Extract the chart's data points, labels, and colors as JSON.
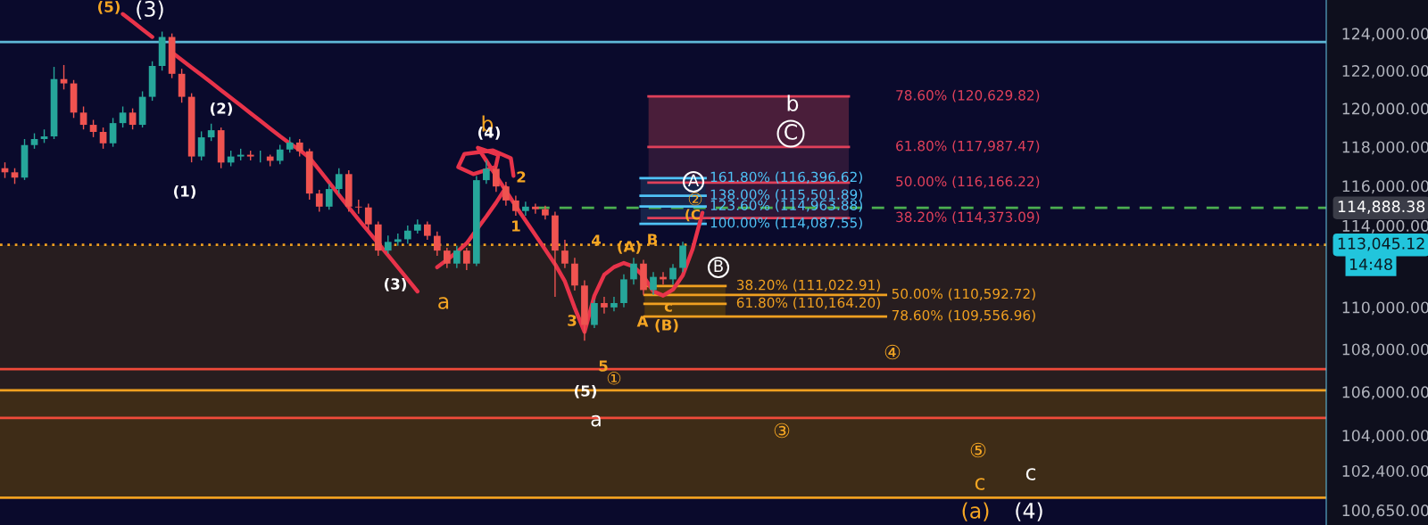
{
  "chart_data": {
    "type": "candlestick",
    "log": true,
    "tick_labels": "y",
    "categories": [
      null,
      null,
      null,
      null,
      null,
      null,
      null,
      null,
      null,
      null,
      null,
      null,
      null,
      null,
      null,
      null,
      null,
      null,
      null,
      null,
      null,
      null,
      null,
      null,
      null,
      null,
      null,
      null,
      null,
      null,
      null,
      null,
      null,
      null,
      null,
      null,
      null,
      null,
      null,
      null,
      null,
      null,
      null,
      null,
      null,
      null,
      null,
      null,
      null,
      null,
      null,
      null,
      null,
      null,
      null,
      null,
      null,
      null,
      null,
      null,
      null,
      null,
      null,
      null,
      null,
      null,
      null,
      null,
      null,
      null,
      null,
      null,
      null,
      null,
      null,
      null,
      null,
      null,
      null,
      null,
      null,
      null,
      null,
      null,
      null,
      null,
      null,
      null,
      null,
      null,
      null,
      null,
      null,
      null,
      null,
      null,
      null,
      null,
      null,
      null,
      null,
      null,
      null,
      null,
      null,
      null,
      null,
      null,
      null,
      null,
      null,
      null,
      null,
      null,
      null,
      null,
      null,
      null,
      null,
      null,
      null,
      null,
      null,
      null,
      null,
      null,
      null,
      null,
      null,
      null,
      null,
      null,
      null,
      null,
      null
    ],
    "ohlc": [
      [
        116900,
        117200,
        116400,
        116690
      ],
      [
        116690,
        116900,
        116100,
        116420
      ],
      [
        116420,
        118400,
        116300,
        118090
      ],
      [
        118090,
        118700,
        117900,
        118400
      ],
      [
        118400,
        118900,
        118200,
        118540
      ],
      [
        118540,
        122200,
        118400,
        121550
      ],
      [
        121550,
        122300,
        121000,
        121320
      ],
      [
        121320,
        121500,
        119500,
        119780
      ],
      [
        119780,
        120100,
        118900,
        119140
      ],
      [
        119140,
        119400,
        118500,
        118770
      ],
      [
        118770,
        119000,
        117900,
        118180
      ],
      [
        118180,
        119500,
        118000,
        119230
      ],
      [
        119230,
        120100,
        119000,
        119780
      ],
      [
        119780,
        120000,
        118900,
        119140
      ],
      [
        119140,
        120900,
        119000,
        120610
      ],
      [
        120610,
        122500,
        120400,
        122250
      ],
      [
        122250,
        124100,
        122000,
        123810
      ],
      [
        123810,
        124000,
        121600,
        121830
      ],
      [
        121830,
        122100,
        120300,
        120610
      ],
      [
        120610,
        120800,
        117200,
        117500
      ],
      [
        117500,
        118800,
        117300,
        118490
      ],
      [
        118490,
        119200,
        118300,
        118860
      ],
      [
        118860,
        119000,
        116900,
        117190
      ],
      [
        117190,
        117800,
        117000,
        117500
      ],
      [
        117500,
        117900,
        117300,
        117590
      ],
      [
        117590,
        117800,
        117300,
        117500
      ],
      [
        117500,
        117800,
        117200,
        117500
      ],
      [
        117500,
        117600,
        117000,
        117280
      ],
      [
        117280,
        118100,
        117100,
        117860
      ],
      [
        117860,
        118500,
        117700,
        118220
      ],
      [
        118220,
        118400,
        117500,
        117770
      ],
      [
        117770,
        117900,
        115300,
        115610
      ],
      [
        115610,
        115800,
        114700,
        114950
      ],
      [
        114950,
        116100,
        114800,
        115840
      ],
      [
        115840,
        116900,
        115600,
        116600
      ],
      [
        116600,
        116800,
        114700,
        114950
      ],
      [
        114950,
        115300,
        114600,
        114910
      ],
      [
        114910,
        115100,
        113800,
        114060
      ],
      [
        114060,
        114200,
        112500,
        112760
      ],
      [
        112760,
        113500,
        112600,
        113190
      ],
      [
        113190,
        113600,
        113000,
        113320
      ],
      [
        113320,
        114000,
        113100,
        113750
      ],
      [
        113750,
        114300,
        113600,
        114060
      ],
      [
        114060,
        114200,
        113300,
        113490
      ],
      [
        113490,
        113700,
        112500,
        112760
      ],
      [
        112760,
        112900,
        111900,
        112120
      ],
      [
        112120,
        113000,
        111900,
        112760
      ],
      [
        112760,
        112900,
        111800,
        112120
      ],
      [
        112120,
        116500,
        112000,
        116290
      ],
      [
        116290,
        117300,
        116100,
        116870
      ],
      [
        116870,
        117000,
        115700,
        115970
      ],
      [
        115970,
        116200,
        115000,
        115260
      ],
      [
        115260,
        115500,
        114500,
        114730
      ],
      [
        114730,
        115200,
        114500,
        114950
      ],
      [
        114950,
        115100,
        114600,
        114820
      ],
      [
        114820,
        115000,
        114300,
        114510
      ],
      [
        114510,
        114700,
        110500,
        112760
      ],
      [
        112760,
        113300,
        111900,
        112120
      ],
      [
        112120,
        112400,
        110800,
        111050
      ],
      [
        111050,
        111300,
        108400,
        109150
      ],
      [
        109150,
        110350,
        109000,
        110200
      ],
      [
        110200,
        110500,
        109700,
        109990
      ],
      [
        109990,
        110500,
        109800,
        110200
      ],
      [
        110200,
        111600,
        110000,
        111350
      ],
      [
        111350,
        112400,
        111100,
        112120
      ],
      [
        112120,
        112300,
        110600,
        110830
      ],
      [
        110830,
        111700,
        110600,
        111470
      ],
      [
        111470,
        111700,
        111100,
        111350
      ],
      [
        111350,
        112100,
        111100,
        111910
      ],
      [
        111910,
        113200,
        111700,
        113010
      ],
      null,
      null,
      null,
      null,
      null,
      null,
      null,
      null,
      null,
      null,
      null,
      null,
      null,
      null,
      null,
      null,
      null,
      null,
      null,
      null,
      null,
      null,
      null,
      null,
      null,
      null,
      null,
      null,
      null,
      null,
      null,
      null,
      null,
      null,
      null,
      null,
      null,
      null,
      null,
      null,
      null,
      null,
      null,
      null,
      null,
      null,
      null,
      null,
      null,
      null,
      null,
      null,
      null,
      null,
      null,
      null,
      null,
      null,
      null,
      null,
      null,
      null,
      null,
      null,
      null
    ],
    "series": [
      {
        "type": "line",
        "color": "#e8334a",
        "values": [
          null,
          null,
          null,
          null,
          null,
          null,
          null,
          null,
          null,
          null,
          null,
          null,
          125060,
          124640,
          124220,
          123810,
          null,
          122980,
          122570,
          122170,
          121770,
          121370,
          120960,
          120560,
          120160,
          119750,
          119350,
          118950,
          118550,
          118170,
          117840,
          117440,
          116810,
          116180,
          115540,
          114910,
          114300,
          113710,
          113120,
          112530,
          111940,
          111350,
          110760,
          null,
          null,
          null,
          null,
          null,
          null,
          null,
          null,
          null,
          null,
          null,
          null,
          null,
          null,
          null,
          null,
          null,
          null,
          null,
          null,
          null,
          null,
          null,
          null,
          null,
          null,
          null,
          null,
          null,
          null,
          null,
          null,
          null,
          null,
          null,
          null,
          null,
          null,
          null,
          null,
          null,
          null,
          null,
          null,
          null,
          null,
          null,
          null,
          null,
          null,
          null,
          null,
          null,
          null,
          null,
          null,
          null,
          null,
          null,
          null,
          null,
          null,
          null,
          null,
          null,
          null,
          null,
          null,
          null,
          null,
          null,
          null,
          null,
          null,
          null,
          null,
          null,
          null,
          null,
          null,
          null,
          null,
          null,
          null,
          null,
          null,
          null,
          null,
          null,
          null,
          null,
          null
        ]
      },
      {
        "type": "line",
        "color": "#e8334a",
        "values": [
          null,
          null,
          null,
          null,
          null,
          null,
          null,
          null,
          null,
          null,
          null,
          null,
          null,
          null,
          null,
          null,
          null,
          null,
          null,
          null,
          null,
          null,
          null,
          null,
          null,
          null,
          null,
          null,
          null,
          null,
          null,
          null,
          null,
          null,
          null,
          null,
          null,
          null,
          null,
          null,
          null,
          null,
          null,
          null,
          111940,
          112310,
          112680,
          113120,
          113790,
          114450,
          115150,
          115920,
          null,
          null,
          null,
          null,
          null,
          null,
          null,
          null,
          null,
          null,
          null,
          null,
          null,
          null,
          null,
          null,
          null,
          null,
          null,
          null,
          null,
          null,
          null,
          null,
          null,
          null,
          null,
          null,
          null,
          null,
          null,
          null,
          null,
          null,
          null,
          null,
          null,
          null,
          null,
          null,
          null,
          null,
          null,
          null,
          null,
          null,
          null,
          null,
          null,
          null,
          null,
          null,
          null,
          null,
          null,
          null,
          null,
          null,
          null,
          null,
          null,
          null,
          null,
          null,
          null,
          null,
          null,
          null,
          null,
          null,
          null,
          null,
          null,
          null,
          null,
          null,
          null,
          null,
          null,
          null,
          null,
          null,
          null
        ]
      },
      {
        "type": "line",
        "color": "#e8334a",
        "values": [
          null,
          null,
          null,
          null,
          null,
          null,
          null,
          null,
          null,
          null,
          null,
          null,
          null,
          null,
          null,
          null,
          null,
          null,
          null,
          null,
          null,
          null,
          null,
          null,
          null,
          null,
          null,
          null,
          null,
          null,
          null,
          null,
          null,
          null,
          null,
          null,
          null,
          null,
          null,
          null,
          null,
          null,
          null,
          null,
          null,
          null,
          null,
          null,
          null,
          117290,
          116510,
          115740,
          114980,
          114250,
          113530,
          112810,
          112090,
          111250,
          109970,
          108820,
          110550,
          111570,
          111950,
          112150,
          111970,
          111500,
          110770,
          110560,
          110850,
          111540,
          112830,
          114640,
          null,
          null,
          null,
          null,
          null,
          null,
          null,
          null,
          null,
          null,
          null,
          null,
          null,
          null,
          null,
          null,
          null,
          null,
          null,
          null,
          null,
          null,
          null,
          null,
          null,
          null,
          null,
          null,
          null,
          null,
          null,
          null,
          null,
          null,
          null,
          null,
          null,
          null,
          null,
          null,
          null,
          null,
          null,
          null,
          null,
          null,
          null,
          null,
          null,
          null,
          null,
          null,
          null,
          null,
          null,
          null,
          null,
          null,
          null,
          null,
          null,
          null,
          null
        ]
      }
    ],
    "ylim": [
      100000,
      125830
    ],
    "yticks": [
      {
        "value": 124000,
        "label": "124,000.00"
      },
      {
        "value": 122000,
        "label": "122,000.00"
      },
      {
        "value": 120000,
        "label": "120,000.00"
      },
      {
        "value": 118000,
        "label": "118,000.00"
      },
      {
        "value": 116000,
        "label": "116,000.00"
      },
      {
        "value": 114000,
        "label": "114,000.00"
      },
      {
        "value": 110000,
        "label": "110,000.00"
      },
      {
        "value": 108000,
        "label": "108,000.00"
      },
      {
        "value": 106000,
        "label": "106,000.00"
      },
      {
        "value": 104000,
        "label": "104,000.00"
      },
      {
        "value": 102400,
        "label": "102,400.00"
      },
      {
        "value": 100650,
        "label": "100,650.00"
      }
    ],
    "bands": [
      {
        "axis": "y",
        "from": 101200,
        "to": 113045.12,
        "color": "#271d1f"
      },
      {
        "axis": "y",
        "from": 101200,
        "to": 106070,
        "color": "#3e2c17"
      },
      {
        "axis": "y",
        "from": 117987.47,
        "to": 120629.82,
        "color": "#4a1e3a"
      },
      {
        "axis": "y",
        "from": 114373.09,
        "to": 117987.47,
        "color": "#2e1838"
      },
      {
        "axis": "y",
        "from": 114087.55,
        "to": 116396.62,
        "color": "#17244a"
      },
      {
        "axis": "y",
        "from": 109556.96,
        "to": 111022.91,
        "color": "#4a3410"
      }
    ],
    "ref_lines": [
      {
        "axis": "y",
        "value": 123540,
        "color": "#5fb8d8"
      },
      {
        "axis": "y",
        "value": 114888.38,
        "label": "114,888.38",
        "color": "#4caf50",
        "line_style": "dashed"
      },
      {
        "axis": "y",
        "value": 113045.12,
        "label": "113,045.12",
        "color": "#f0a020",
        "line_style": "dotted"
      },
      {
        "axis": "y",
        "value": 107060,
        "color": "#f04a3a"
      },
      {
        "axis": "y",
        "value": 106070,
        "color": "#f0a020"
      },
      {
        "axis": "y",
        "value": 104800,
        "color": "#f04a3a"
      },
      {
        "axis": "y",
        "value": 101200,
        "color": "#f0a020"
      },
      {
        "axis": "y",
        "value": 120629.82,
        "label": "78.60% (120,629.82)",
        "color": "#e0405a"
      },
      {
        "axis": "y",
        "value": 117987.47,
        "label": "61.80% (117,987.47)",
        "color": "#e0405a"
      },
      {
        "axis": "y",
        "value": 116166.22,
        "label": "50.00% (116,166.22)",
        "color": "#e0405a"
      },
      {
        "axis": "y",
        "value": 114373.09,
        "label": "38.20% (114,373.09)",
        "color": "#e0405a"
      },
      {
        "axis": "y",
        "value": 116396.62,
        "label": "161.80% (116,396.62)",
        "color": "#4fc3f7"
      },
      {
        "axis": "y",
        "value": 115501.89,
        "label": "138.00% (115,501.89)",
        "color": "#4fc3f7"
      },
      {
        "axis": "y",
        "value": 114963.88,
        "label": "123.60% (114,963.88)",
        "color": "#4fc3f7"
      },
      {
        "axis": "y",
        "value": 114087.55,
        "label": "100.00% (114,087.55)",
        "color": "#4fc3f7"
      },
      {
        "axis": "y",
        "value": 111022.91,
        "label": "38.20% (111,022.91)",
        "color": "#f0a020"
      },
      {
        "axis": "y",
        "value": 110592.72,
        "label": "50.00% (110,592.72)",
        "color": "#f0a020"
      },
      {
        "axis": "y",
        "value": 110164.2,
        "label": "61.80% (110,164.20)",
        "color": "#f0a020"
      },
      {
        "axis": "y",
        "value": 109556.96,
        "label": "78.60% (109,556.96)",
        "color": "#f0a020"
      }
    ],
    "annotations": [
      "(5)",
      "(3)",
      "(2)",
      "(1)",
      "(3)",
      "a",
      "b",
      "(4)",
      "2",
      "1",
      "4",
      "(A)",
      "B",
      "3",
      "A",
      "c",
      "(B)",
      "5",
      "①",
      "(5)",
      "a",
      "④",
      "③",
      "⑤",
      "c",
      "(a)",
      "(4)",
      "c",
      "b",
      "C",
      "A",
      "②",
      "(C",
      "B",
      "14:48"
    ]
  }
}
